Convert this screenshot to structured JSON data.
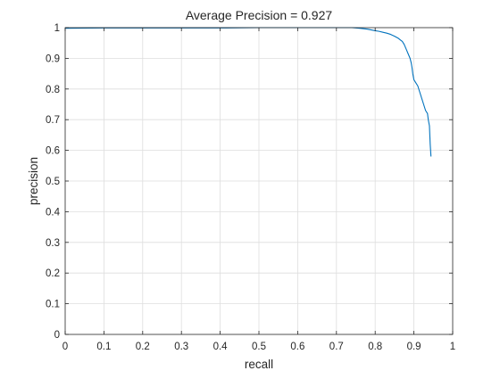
{
  "chart_data": {
    "type": "line",
    "title": "Average Precision = 0.927",
    "xlabel": "recall",
    "ylabel": "precision",
    "xlim": [
      0,
      1
    ],
    "ylim": [
      0,
      1
    ],
    "xticks": [
      0,
      0.1,
      0.2,
      0.3,
      0.4,
      0.5,
      0.6,
      0.7,
      0.8,
      0.9,
      1
    ],
    "yticks": [
      0,
      0.1,
      0.2,
      0.3,
      0.4,
      0.5,
      0.6,
      0.7,
      0.8,
      0.9,
      1
    ],
    "xtick_labels": [
      "0",
      "0.1",
      "0.2",
      "0.3",
      "0.4",
      "0.5",
      "0.6",
      "0.7",
      "0.8",
      "0.9",
      "1"
    ],
    "ytick_labels": [
      "0",
      "0.1",
      "0.2",
      "0.3",
      "0.4",
      "0.5",
      "0.6",
      "0.7",
      "0.8",
      "0.9",
      "1"
    ],
    "grid": true,
    "line_color": "#0072BD",
    "series": [
      {
        "x": [
          0,
          0.1,
          0.2,
          0.3,
          0.4,
          0.5,
          0.6,
          0.65,
          0.7,
          0.74,
          0.76,
          0.78,
          0.8,
          0.81,
          0.82,
          0.83,
          0.84,
          0.85,
          0.86,
          0.865,
          0.87,
          0.875,
          0.88,
          0.885,
          0.89,
          0.893,
          0.895,
          0.897,
          0.9,
          0.905,
          0.91,
          0.915,
          0.92,
          0.925,
          0.93,
          0.935,
          0.937,
          0.94,
          0.942,
          0.944
        ],
        "y": [
          0.998,
          0.999,
          0.999,
          0.999,
          0.999,
          1.0,
          1.0,
          1.0,
          1.0,
          1.0,
          0.998,
          0.995,
          0.99,
          0.988,
          0.985,
          0.982,
          0.978,
          0.972,
          0.965,
          0.96,
          0.955,
          0.945,
          0.93,
          0.915,
          0.9,
          0.885,
          0.87,
          0.85,
          0.83,
          0.82,
          0.81,
          0.79,
          0.77,
          0.75,
          0.73,
          0.72,
          0.7,
          0.68,
          0.62,
          0.58
        ]
      }
    ]
  }
}
